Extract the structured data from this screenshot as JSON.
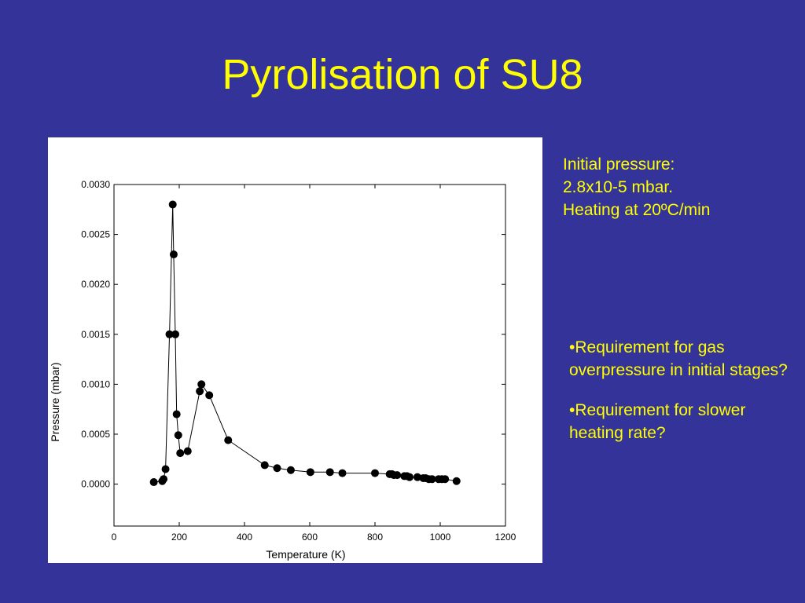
{
  "slide": {
    "title": "Pyrolisation of SU8",
    "info_lines": [
      "Initial pressure:",
      "2.8x10-5 mbar.",
      "Heating at 20ºC/min"
    ],
    "bullets": [
      "•Requirement for gas overpressure in initial stages?",
      "•Requirement for slower heating rate?"
    ]
  },
  "colors": {
    "background": "#333399",
    "text": "#ffff00",
    "panel": "#ffffff",
    "marker": "#000000"
  },
  "chart_data": {
    "type": "line",
    "title": "",
    "xlabel": "Temperature (K)",
    "ylabel": "Pressure (mbar)",
    "xlim": [
      0,
      1200
    ],
    "ylim": [
      -0.00042,
      0.003
    ],
    "xticks": [
      0,
      200,
      400,
      600,
      800,
      1000,
      1200
    ],
    "xtick_labels": [
      "0",
      "200",
      "400",
      "600",
      "800",
      "1000",
      "1200"
    ],
    "yticks": [
      0.0,
      0.0005,
      0.001,
      0.0015,
      0.002,
      0.0025,
      0.003
    ],
    "ytick_labels": [
      "0.0000",
      "0.0005",
      "0.0010",
      "0.0015",
      "0.0020",
      "0.0025",
      "0.0030"
    ],
    "grid": false,
    "series": [
      {
        "x": [
          122,
          148,
          152,
          158,
          170,
          180,
          183,
          188,
          192,
          197,
          203,
          226,
          263,
          268,
          292,
          350,
          462,
          500,
          542,
          602,
          662,
          700,
          800,
          845,
          852,
          858,
          868,
          890,
          898,
          906,
          930,
          948,
          955,
          965,
          975,
          995,
          1005,
          1015,
          1050
        ],
        "y": [
          2e-05,
          3e-05,
          5e-05,
          0.00015,
          0.0015,
          0.0028,
          0.0023,
          0.0015,
          0.0007,
          0.00049,
          0.00031,
          0.00033,
          0.00093,
          0.001,
          0.00089,
          0.00044,
          0.00019,
          0.00016,
          0.00014,
          0.00012,
          0.00012,
          0.00011,
          0.00011,
          0.0001,
          0.0001,
          9e-05,
          9e-05,
          8e-05,
          8e-05,
          7e-05,
          7e-05,
          6e-05,
          6e-05,
          5e-05,
          5e-05,
          5e-05,
          5e-05,
          5e-05,
          3e-05
        ]
      }
    ]
  }
}
